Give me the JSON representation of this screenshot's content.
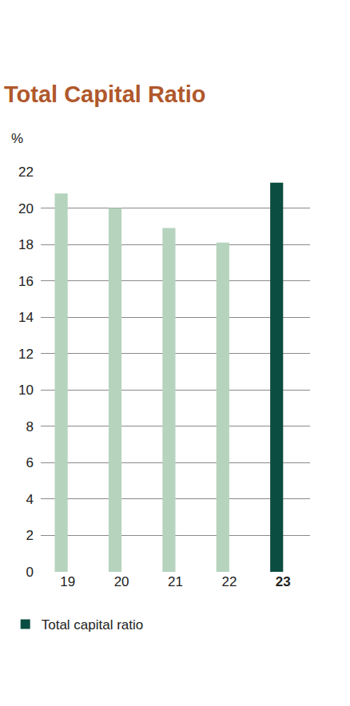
{
  "chart_data": {
    "type": "bar",
    "title": "Total Capital Ratio",
    "ylabel": "%",
    "categories": [
      "19",
      "20",
      "21",
      "22",
      "23"
    ],
    "series": [
      {
        "name": "Total capital ratio",
        "color": "#0b4d40",
        "colors": [
          "#b5d3bd",
          "#b5d3bd",
          "#b5d3bd",
          "#b5d3bd",
          "#0b4d40"
        ],
        "values": [
          20.8,
          20.0,
          18.9,
          18.1,
          21.4
        ]
      }
    ],
    "ylim": [
      0,
      22
    ],
    "yticks": [
      0,
      2,
      4,
      6,
      8,
      10,
      12,
      14,
      16,
      18,
      20,
      22
    ],
    "grid": true,
    "legend": "bottom left"
  }
}
